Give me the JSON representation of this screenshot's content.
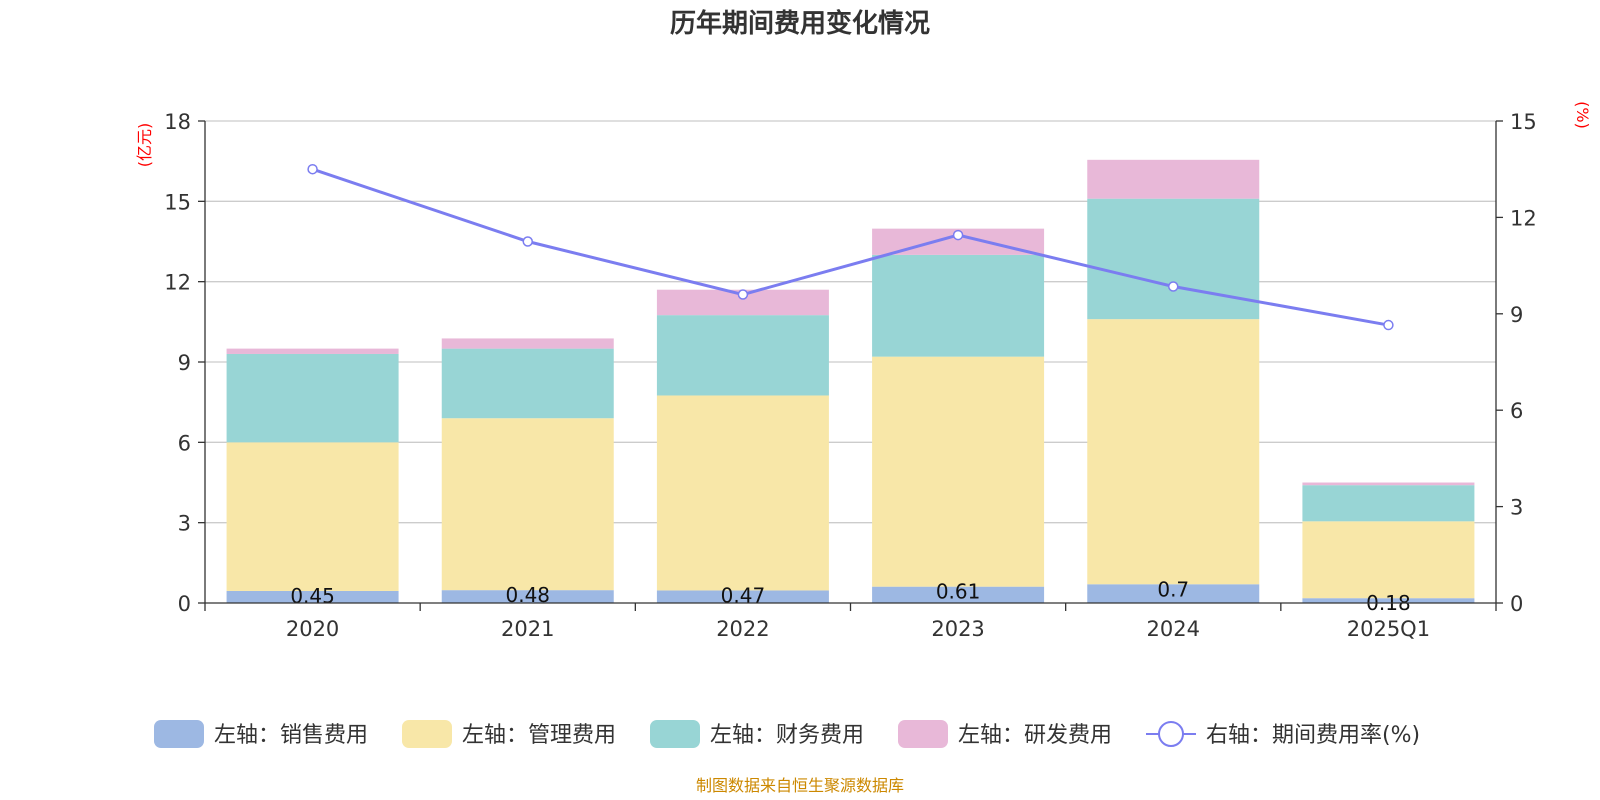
{
  "chart_data": {
    "type": "bar",
    "title": "历年期间费用变化情况",
    "categories": [
      "2020",
      "2021",
      "2022",
      "2023",
      "2024",
      "2025Q1"
    ],
    "left_axis": {
      "unit": "(亿元)",
      "ylim": [
        0,
        18
      ],
      "ticks": [
        "0",
        "3",
        "6",
        "9",
        "12",
        "15",
        "18"
      ]
    },
    "right_axis": {
      "unit": "(%)",
      "ylim": [
        0,
        15
      ],
      "ticks": [
        "0",
        "3",
        "6",
        "9",
        "12",
        "15"
      ]
    },
    "series": [
      {
        "name": "左轴：销售费用",
        "kind": "bar",
        "axis": "left",
        "color": "#9db8e3",
        "values": [
          0.45,
          0.48,
          0.47,
          0.61,
          0.7,
          0.18
        ],
        "labels": [
          "0.45",
          "0.48",
          "0.47",
          "0.61",
          "0.7",
          "0.18"
        ]
      },
      {
        "name": "左轴：管理费用",
        "kind": "bar",
        "axis": "left",
        "color": "#f8e7a8",
        "values": [
          5.55,
          6.42,
          7.28,
          8.59,
          9.9,
          2.87
        ]
      },
      {
        "name": "左轴：财务费用",
        "kind": "bar",
        "axis": "left",
        "color": "#98d5d5",
        "values": [
          3.3,
          2.6,
          3.0,
          3.8,
          4.5,
          1.35
        ]
      },
      {
        "name": "左轴：研发费用",
        "kind": "bar",
        "axis": "left",
        "color": "#e8b8d8",
        "values": [
          0.2,
          0.38,
          0.95,
          0.98,
          1.45,
          0.1
        ]
      },
      {
        "name": "右轴：期间费用率(%)",
        "kind": "line",
        "axis": "right",
        "color": "#7b7df0",
        "values": [
          13.5,
          11.25,
          9.6,
          11.45,
          9.85,
          8.65
        ]
      }
    ],
    "grid": true,
    "legend_position": "bottom-center"
  },
  "source_note": "制图数据来自恒生聚源数据库"
}
